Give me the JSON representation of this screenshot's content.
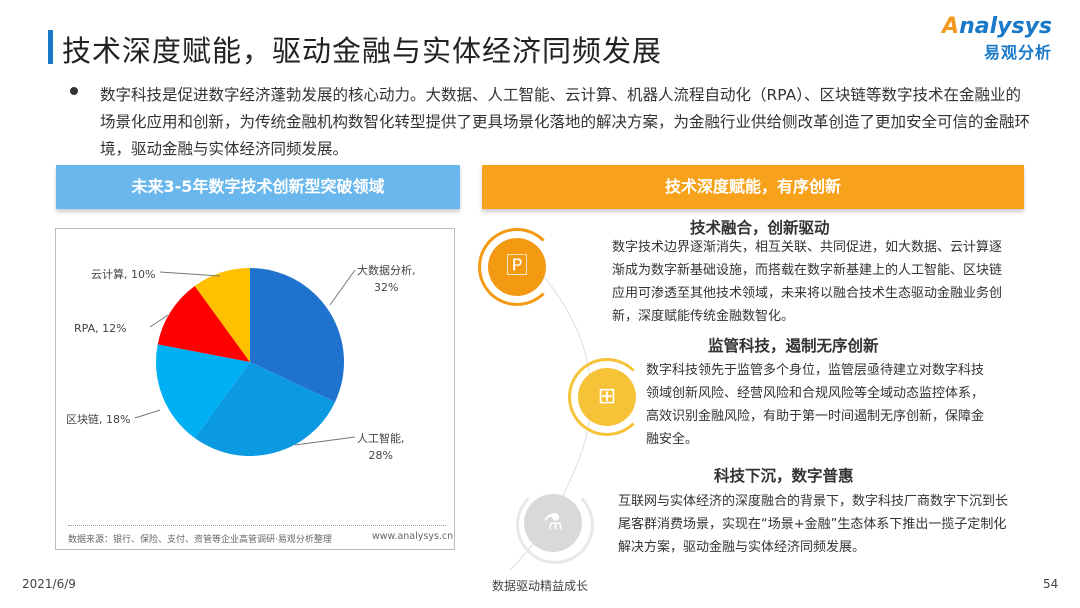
{
  "header": {
    "title": "技术深度赋能，驱动金融与实体经济同频发展",
    "logo_en_prefix": "A",
    "logo_en": "nalysys",
    "logo_cn": "易观分析"
  },
  "intro": "数字科技是促进数字经济蓬勃发展的核心动力。大数据、人工智能、云计算、机器人流程自动化（RPA）、区块链等数字技术在金融业的场景化应用和创新，为传统金融机构数智化转型提供了更具场景化落地的解决方案，为金融行业供给侧改革创造了更加安全可信的金融环境，驱动金融与实体经济同频发展。",
  "left_panel": {
    "header": "未来3-5年数字技术创新型突破领域",
    "source": "数据来源：银行、保险、支付、资管等企业高管调研·易观分析整理",
    "site": "www.analysys.cn"
  },
  "chart_data": {
    "type": "pie",
    "start": "12 o'clock, clockwise",
    "slices": [
      {
        "label": "大数据分析,",
        "pct_label": "32%",
        "value": 32,
        "color": "#1f73cf"
      },
      {
        "label": "人工智能,",
        "pct_label": "28%",
        "value": 28,
        "color": "#0b9ae2"
      },
      {
        "label": "区块链, 18%",
        "value": 18,
        "color": "#00b0f5"
      },
      {
        "label": "RPA, 12%",
        "value": 12,
        "color": "#ff0000"
      },
      {
        "label": "云计算, 10%",
        "value": 10,
        "color": "#ffc000"
      }
    ]
  },
  "right_panel": {
    "header": "技术深度赋能，有序创新",
    "sections": [
      {
        "title": "技术融合，创新驱动",
        "body": "数字技术边界逐渐消失，相互关联、共同促进，如大数据、云计算逐渐成为数字新基础设施，而搭载在数字新基建上的人工智能、区块链应用可渗透至其他技术领域，未来将以融合技术生态驱动金融业务创新，深度赋能传统金融数智化。",
        "icon": "document-p-icon",
        "color": "#f39a12"
      },
      {
        "title": "监管科技，遏制无序创新",
        "body": "数字科技领先于监管多个身位，监管层亟待建立对数字科技领域创新风险、经营风险和合规风险等全域动态监控体系，高效识别金融风险，有助于第一时间遏制无序创新，保障金融安全。",
        "icon": "hierarchy-icon",
        "color": "#f6c338"
      },
      {
        "title": "科技下沉，数字普惠",
        "body": "互联网与实体经济的深度融合的背景下，数字科技厂商数字下沉到长尾客群消费场景，实现在“场景+金融”生态体系下推出一揽子定制化解决方案，驱动金融与实体经济同频发展。",
        "icon": "flask-icon",
        "color": "#d9d9d9"
      }
    ]
  },
  "footer": {
    "date": "2021/6/9",
    "center": "数据驱动精益成长",
    "page": "54"
  }
}
